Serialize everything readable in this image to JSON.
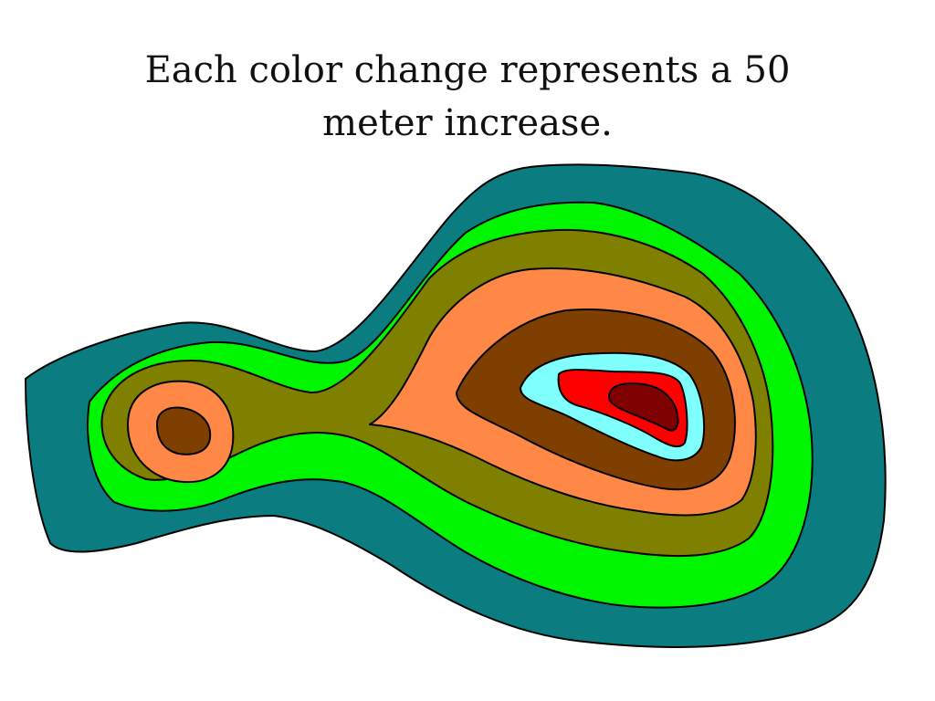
{
  "slide": {
    "title_line1": "Each color change represents a 50",
    "title_line2": "meter increase."
  },
  "contour_map": {
    "contour_interval_m": 50,
    "levels_lowest_to_highest": [
      {
        "name": "level-1",
        "color": "#0b7d80"
      },
      {
        "name": "level-2",
        "color": "#00f500"
      },
      {
        "name": "level-3",
        "color": "#808000"
      },
      {
        "name": "level-4",
        "color": "#ff8847"
      },
      {
        "name": "level-5",
        "color": "#7f3f00"
      },
      {
        "name": "level-6",
        "color": "#80ffff"
      },
      {
        "name": "level-7",
        "color": "#ff0000"
      },
      {
        "name": "level-8",
        "color": "#7f0000"
      }
    ]
  }
}
